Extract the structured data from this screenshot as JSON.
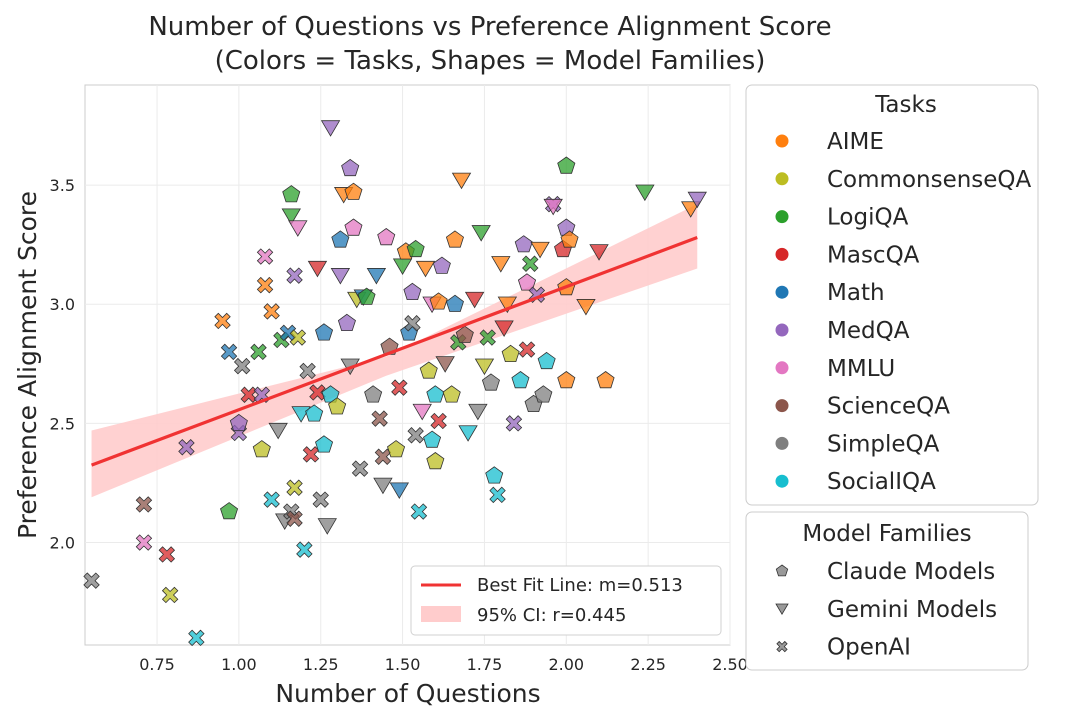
{
  "chart_data": {
    "type": "scatter",
    "title": "Number of Questions vs Preference Alignment Score",
    "subtitle": "(Colors = Tasks, Shapes = Model Families)",
    "xlabel": "Number of Questions",
    "ylabel": "Preference Alignment Score",
    "xlim": [
      0.53,
      2.5
    ],
    "ylim": [
      1.57,
      3.92
    ],
    "xticks": [
      "0.75",
      "1.00",
      "1.25",
      "1.50",
      "1.75",
      "2.00",
      "2.25",
      "2.50"
    ],
    "yticks": [
      "2.0",
      "2.5",
      "3.0",
      "3.5"
    ],
    "grid": true,
    "fit_line": {
      "label": "Best Fit Line: m=0.513",
      "slope": 0.513,
      "x": [
        0.55,
        2.4
      ],
      "y": [
        2.325,
        3.28
      ],
      "color": "#f03333"
    },
    "ci_band": {
      "label": "95% CI: r=0.445",
      "x": [
        0.55,
        1.45,
        2.4
      ],
      "lower": [
        2.19,
        2.7,
        3.15
      ],
      "upper": [
        2.47,
        2.78,
        3.42
      ],
      "color": "#ffcccc"
    },
    "tasks_legend": {
      "title": "Tasks",
      "items": [
        {
          "name": "AIME",
          "color": "#ff7f0e"
        },
        {
          "name": "CommonsenseQA",
          "color": "#bcbd22"
        },
        {
          "name": "LogiQA",
          "color": "#2ca02c"
        },
        {
          "name": "MascQA",
          "color": "#d62728"
        },
        {
          "name": "Math",
          "color": "#1f77b4"
        },
        {
          "name": "MedQA",
          "color": "#9467bd"
        },
        {
          "name": "MMLU",
          "color": "#e377c2"
        },
        {
          "name": "ScienceQA",
          "color": "#8c564b"
        },
        {
          "name": "SimpleQA",
          "color": "#7f7f7f"
        },
        {
          "name": "SocialIQA",
          "color": "#17becf"
        }
      ]
    },
    "families_legend": {
      "title": "Model Families",
      "items": [
        {
          "name": "Claude Models",
          "shape": "pentagon"
        },
        {
          "name": "Gemini Models",
          "shape": "triangle-down"
        },
        {
          "name": "OpenAI",
          "shape": "x"
        }
      ]
    },
    "points": [
      {
        "x": 0.55,
        "y": 1.84,
        "task": "SimpleQA",
        "family": "OpenAI"
      },
      {
        "x": 0.71,
        "y": 2.16,
        "task": "ScienceQA",
        "family": "OpenAI"
      },
      {
        "x": 0.71,
        "y": 2.0,
        "task": "MMLU",
        "family": "OpenAI"
      },
      {
        "x": 0.78,
        "y": 1.95,
        "task": "MascQA",
        "family": "OpenAI"
      },
      {
        "x": 0.79,
        "y": 1.78,
        "task": "CommonsenseQA",
        "family": "OpenAI"
      },
      {
        "x": 0.84,
        "y": 2.4,
        "task": "MedQA",
        "family": "OpenAI"
      },
      {
        "x": 0.87,
        "y": 1.6,
        "task": "SocialIQA",
        "family": "OpenAI"
      },
      {
        "x": 0.95,
        "y": 2.93,
        "task": "AIME",
        "family": "OpenAI"
      },
      {
        "x": 0.97,
        "y": 2.13,
        "task": "LogiQA",
        "family": "Claude"
      },
      {
        "x": 0.97,
        "y": 2.8,
        "task": "Math",
        "family": "OpenAI"
      },
      {
        "x": 1.0,
        "y": 2.46,
        "task": "MedQA",
        "family": "OpenAI"
      },
      {
        "x": 1.0,
        "y": 2.5,
        "task": "MedQA",
        "family": "Claude"
      },
      {
        "x": 1.01,
        "y": 2.74,
        "task": "SimpleQA",
        "family": "OpenAI"
      },
      {
        "x": 1.03,
        "y": 2.62,
        "task": "MascQA",
        "family": "OpenAI"
      },
      {
        "x": 1.06,
        "y": 2.8,
        "task": "LogiQA",
        "family": "OpenAI"
      },
      {
        "x": 1.07,
        "y": 2.39,
        "task": "CommonsenseQA",
        "family": "Claude"
      },
      {
        "x": 1.07,
        "y": 2.62,
        "task": "MedQA",
        "family": "OpenAI"
      },
      {
        "x": 1.08,
        "y": 3.2,
        "task": "MMLU",
        "family": "OpenAI"
      },
      {
        "x": 1.08,
        "y": 3.08,
        "task": "AIME",
        "family": "OpenAI"
      },
      {
        "x": 1.1,
        "y": 2.18,
        "task": "SocialIQA",
        "family": "OpenAI"
      },
      {
        "x": 1.1,
        "y": 2.97,
        "task": "AIME",
        "family": "OpenAI"
      },
      {
        "x": 1.12,
        "y": 2.47,
        "task": "SimpleQA",
        "family": "Gemini"
      },
      {
        "x": 1.13,
        "y": 2.85,
        "task": "LogiQA",
        "family": "OpenAI"
      },
      {
        "x": 1.14,
        "y": 2.09,
        "task": "SimpleQA",
        "family": "Gemini"
      },
      {
        "x": 1.15,
        "y": 2.88,
        "task": "Math",
        "family": "OpenAI"
      },
      {
        "x": 1.16,
        "y": 3.46,
        "task": "LogiQA",
        "family": "Claude"
      },
      {
        "x": 1.16,
        "y": 3.37,
        "task": "LogiQA",
        "family": "Gemini"
      },
      {
        "x": 1.16,
        "y": 2.13,
        "task": "SimpleQA",
        "family": "OpenAI"
      },
      {
        "x": 1.17,
        "y": 2.23,
        "task": "CommonsenseQA",
        "family": "OpenAI"
      },
      {
        "x": 1.17,
        "y": 3.12,
        "task": "MedQA",
        "family": "OpenAI"
      },
      {
        "x": 1.17,
        "y": 2.1,
        "task": "ScienceQA",
        "family": "OpenAI"
      },
      {
        "x": 1.18,
        "y": 3.32,
        "task": "MMLU",
        "family": "Gemini"
      },
      {
        "x": 1.18,
        "y": 2.86,
        "task": "CommonsenseQA",
        "family": "OpenAI"
      },
      {
        "x": 1.19,
        "y": 2.54,
        "task": "SocialIQA",
        "family": "Gemini"
      },
      {
        "x": 1.2,
        "y": 1.97,
        "task": "SocialIQA",
        "family": "OpenAI"
      },
      {
        "x": 1.21,
        "y": 2.72,
        "task": "SimpleQA",
        "family": "OpenAI"
      },
      {
        "x": 1.22,
        "y": 2.37,
        "task": "MascQA",
        "family": "OpenAI"
      },
      {
        "x": 1.23,
        "y": 2.54,
        "task": "SocialIQA",
        "family": "Claude"
      },
      {
        "x": 1.24,
        "y": 2.63,
        "task": "MascQA",
        "family": "OpenAI"
      },
      {
        "x": 1.24,
        "y": 3.15,
        "task": "MascQA",
        "family": "Gemini"
      },
      {
        "x": 1.25,
        "y": 2.18,
        "task": "SimpleQA",
        "family": "OpenAI"
      },
      {
        "x": 1.26,
        "y": 2.41,
        "task": "SocialIQA",
        "family": "Claude"
      },
      {
        "x": 1.26,
        "y": 2.88,
        "task": "Math",
        "family": "Claude"
      },
      {
        "x": 1.27,
        "y": 2.07,
        "task": "SimpleQA",
        "family": "Gemini"
      },
      {
        "x": 1.28,
        "y": 3.74,
        "task": "MedQA",
        "family": "Gemini"
      },
      {
        "x": 1.28,
        "y": 2.62,
        "task": "SocialIQA",
        "family": "Claude"
      },
      {
        "x": 1.3,
        "y": 2.57,
        "task": "CommonsenseQA",
        "family": "Claude"
      },
      {
        "x": 1.31,
        "y": 3.27,
        "task": "Math",
        "family": "Claude"
      },
      {
        "x": 1.31,
        "y": 3.12,
        "task": "MedQA",
        "family": "Gemini"
      },
      {
        "x": 1.32,
        "y": 3.46,
        "task": "AIME",
        "family": "Gemini"
      },
      {
        "x": 1.33,
        "y": 2.92,
        "task": "MedQA",
        "family": "Claude"
      },
      {
        "x": 1.34,
        "y": 3.57,
        "task": "MedQA",
        "family": "Claude"
      },
      {
        "x": 1.34,
        "y": 2.74,
        "task": "SimpleQA",
        "family": "Gemini"
      },
      {
        "x": 1.35,
        "y": 3.47,
        "task": "AIME",
        "family": "Claude"
      },
      {
        "x": 1.35,
        "y": 3.32,
        "task": "MMLU",
        "family": "Claude"
      },
      {
        "x": 1.36,
        "y": 3.02,
        "task": "CommonsenseQA",
        "family": "Gemini"
      },
      {
        "x": 1.37,
        "y": 2.31,
        "task": "SimpleQA",
        "family": "OpenAI"
      },
      {
        "x": 1.38,
        "y": 3.03,
        "task": "Math",
        "family": "Gemini"
      },
      {
        "x": 1.39,
        "y": 3.03,
        "task": "LogiQA",
        "family": "Claude"
      },
      {
        "x": 1.41,
        "y": 2.62,
        "task": "SimpleQA",
        "family": "Claude"
      },
      {
        "x": 1.42,
        "y": 3.12,
        "task": "Math",
        "family": "Gemini"
      },
      {
        "x": 1.43,
        "y": 2.52,
        "task": "ScienceQA",
        "family": "OpenAI"
      },
      {
        "x": 1.44,
        "y": 2.24,
        "task": "SimpleQA",
        "family": "Gemini"
      },
      {
        "x": 1.44,
        "y": 2.36,
        "task": "ScienceQA",
        "family": "OpenAI"
      },
      {
        "x": 1.45,
        "y": 3.28,
        "task": "MMLU",
        "family": "Claude"
      },
      {
        "x": 1.46,
        "y": 2.82,
        "task": "ScienceQA",
        "family": "Claude"
      },
      {
        "x": 1.48,
        "y": 2.39,
        "task": "CommonsenseQA",
        "family": "Claude"
      },
      {
        "x": 1.49,
        "y": 2.65,
        "task": "MascQA",
        "family": "OpenAI"
      },
      {
        "x": 1.49,
        "y": 2.22,
        "task": "Math",
        "family": "Gemini"
      },
      {
        "x": 1.5,
        "y": 3.16,
        "task": "LogiQA",
        "family": "Gemini"
      },
      {
        "x": 1.51,
        "y": 3.22,
        "task": "AIME",
        "family": "Claude"
      },
      {
        "x": 1.52,
        "y": 2.88,
        "task": "Math",
        "family": "Claude"
      },
      {
        "x": 1.53,
        "y": 2.92,
        "task": "SimpleQA",
        "family": "OpenAI"
      },
      {
        "x": 1.53,
        "y": 3.05,
        "task": "MedQA",
        "family": "Claude"
      },
      {
        "x": 1.54,
        "y": 2.45,
        "task": "SimpleQA",
        "family": "OpenAI"
      },
      {
        "x": 1.54,
        "y": 3.23,
        "task": "LogiQA",
        "family": "Claude"
      },
      {
        "x": 1.55,
        "y": 2.13,
        "task": "SocialIQA",
        "family": "OpenAI"
      },
      {
        "x": 1.56,
        "y": 2.55,
        "task": "MMLU",
        "family": "Gemini"
      },
      {
        "x": 1.57,
        "y": 3.15,
        "task": "AIME",
        "family": "Gemini"
      },
      {
        "x": 1.58,
        "y": 2.72,
        "task": "CommonsenseQA",
        "family": "Claude"
      },
      {
        "x": 1.59,
        "y": 2.43,
        "task": "SocialIQA",
        "family": "Claude"
      },
      {
        "x": 1.59,
        "y": 3.0,
        "task": "MMLU",
        "family": "Gemini"
      },
      {
        "x": 1.6,
        "y": 2.34,
        "task": "CommonsenseQA",
        "family": "Claude"
      },
      {
        "x": 1.6,
        "y": 2.62,
        "task": "SocialIQA",
        "family": "Claude"
      },
      {
        "x": 1.61,
        "y": 2.51,
        "task": "MascQA",
        "family": "OpenAI"
      },
      {
        "x": 1.61,
        "y": 3.01,
        "task": "AIME",
        "family": "Claude"
      },
      {
        "x": 1.62,
        "y": 3.16,
        "task": "MedQA",
        "family": "Claude"
      },
      {
        "x": 1.63,
        "y": 2.75,
        "task": "ScienceQA",
        "family": "Gemini"
      },
      {
        "x": 1.65,
        "y": 2.62,
        "task": "CommonsenseQA",
        "family": "Claude"
      },
      {
        "x": 1.66,
        "y": 3.27,
        "task": "AIME",
        "family": "Claude"
      },
      {
        "x": 1.66,
        "y": 3.0,
        "task": "Math",
        "family": "Claude"
      },
      {
        "x": 1.67,
        "y": 2.84,
        "task": "LogiQA",
        "family": "OpenAI"
      },
      {
        "x": 1.68,
        "y": 3.52,
        "task": "AIME",
        "family": "Gemini"
      },
      {
        "x": 1.69,
        "y": 2.87,
        "task": "ScienceQA",
        "family": "Claude"
      },
      {
        "x": 1.7,
        "y": 2.46,
        "task": "SocialIQA",
        "family": "Gemini"
      },
      {
        "x": 1.72,
        "y": 3.02,
        "task": "MascQA",
        "family": "Gemini"
      },
      {
        "x": 1.73,
        "y": 2.55,
        "task": "SimpleQA",
        "family": "Gemini"
      },
      {
        "x": 1.74,
        "y": 3.3,
        "task": "LogiQA",
        "family": "Gemini"
      },
      {
        "x": 1.75,
        "y": 2.74,
        "task": "CommonsenseQA",
        "family": "Gemini"
      },
      {
        "x": 1.76,
        "y": 2.86,
        "task": "LogiQA",
        "family": "OpenAI"
      },
      {
        "x": 1.77,
        "y": 2.67,
        "task": "SimpleQA",
        "family": "Claude"
      },
      {
        "x": 1.78,
        "y": 2.28,
        "task": "SocialIQA",
        "family": "Claude"
      },
      {
        "x": 1.79,
        "y": 2.2,
        "task": "SocialIQA",
        "family": "OpenAI"
      },
      {
        "x": 1.8,
        "y": 3.17,
        "task": "AIME",
        "family": "Gemini"
      },
      {
        "x": 1.81,
        "y": 2.9,
        "task": "MascQA",
        "family": "Gemini"
      },
      {
        "x": 1.82,
        "y": 3.0,
        "task": "AIME",
        "family": "Gemini"
      },
      {
        "x": 1.83,
        "y": 2.79,
        "task": "CommonsenseQA",
        "family": "Claude"
      },
      {
        "x": 1.84,
        "y": 2.5,
        "task": "MedQA",
        "family": "OpenAI"
      },
      {
        "x": 1.86,
        "y": 2.68,
        "task": "SocialIQA",
        "family": "Claude"
      },
      {
        "x": 1.87,
        "y": 3.25,
        "task": "MedQA",
        "family": "Claude"
      },
      {
        "x": 1.88,
        "y": 3.09,
        "task": "MMLU",
        "family": "Claude"
      },
      {
        "x": 1.88,
        "y": 2.81,
        "task": "MascQA",
        "family": "OpenAI"
      },
      {
        "x": 1.89,
        "y": 3.17,
        "task": "LogiQA",
        "family": "OpenAI"
      },
      {
        "x": 1.9,
        "y": 2.58,
        "task": "SimpleQA",
        "family": "Claude"
      },
      {
        "x": 1.91,
        "y": 3.04,
        "task": "MedQA",
        "family": "OpenAI"
      },
      {
        "x": 1.92,
        "y": 3.23,
        "task": "AIME",
        "family": "Gemini"
      },
      {
        "x": 1.93,
        "y": 2.62,
        "task": "SimpleQA",
        "family": "Claude"
      },
      {
        "x": 1.94,
        "y": 2.76,
        "task": "SocialIQA",
        "family": "Claude"
      },
      {
        "x": 1.96,
        "y": 3.42,
        "task": "MedQA",
        "family": "OpenAI"
      },
      {
        "x": 1.96,
        "y": 3.41,
        "task": "MMLU",
        "family": "Gemini"
      },
      {
        "x": 1.99,
        "y": 3.23,
        "task": "MascQA",
        "family": "Claude"
      },
      {
        "x": 2.0,
        "y": 3.58,
        "task": "LogiQA",
        "family": "Claude"
      },
      {
        "x": 2.0,
        "y": 3.32,
        "task": "MedQA",
        "family": "Claude"
      },
      {
        "x": 2.0,
        "y": 3.07,
        "task": "AIME",
        "family": "Claude"
      },
      {
        "x": 2.0,
        "y": 2.68,
        "task": "AIME",
        "family": "Claude"
      },
      {
        "x": 2.01,
        "y": 3.27,
        "task": "AIME",
        "family": "Claude"
      },
      {
        "x": 2.06,
        "y": 2.99,
        "task": "AIME",
        "family": "Gemini"
      },
      {
        "x": 2.1,
        "y": 3.22,
        "task": "MascQA",
        "family": "Gemini"
      },
      {
        "x": 2.12,
        "y": 2.68,
        "task": "AIME",
        "family": "Claude"
      },
      {
        "x": 2.24,
        "y": 3.47,
        "task": "LogiQA",
        "family": "Gemini"
      },
      {
        "x": 2.38,
        "y": 3.4,
        "task": "AIME",
        "family": "Gemini"
      },
      {
        "x": 2.4,
        "y": 3.44,
        "task": "MedQA",
        "family": "Gemini"
      }
    ]
  }
}
